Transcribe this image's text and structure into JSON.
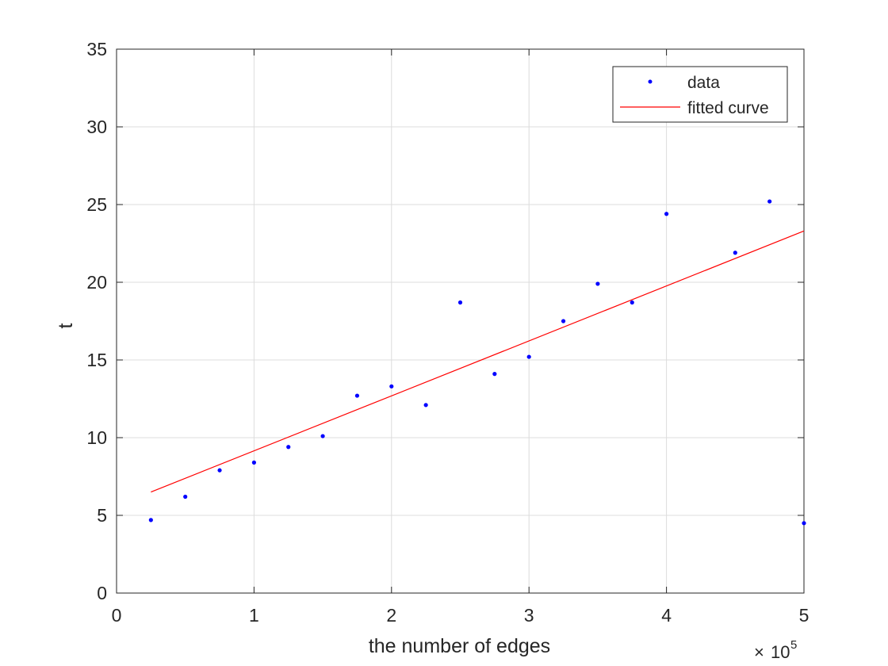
{
  "chart_data": {
    "type": "scatter",
    "title": "",
    "xlabel": "the number of edges",
    "ylabel": "t",
    "x_exponent_label": {
      "base": "10",
      "power": "5",
      "prefix": "×"
    },
    "xlim": [
      0,
      5
    ],
    "ylim": [
      0,
      35
    ],
    "x_ticks": [
      0,
      1,
      2,
      3,
      4,
      5
    ],
    "y_ticks": [
      0,
      5,
      10,
      15,
      20,
      25,
      30,
      35
    ],
    "x_tick_labels": [
      "0",
      "1",
      "2",
      "3",
      "4",
      "5"
    ],
    "y_tick_labels": [
      "0",
      "5",
      "10",
      "15",
      "20",
      "25",
      "30",
      "35"
    ],
    "grid": true,
    "legend_position": "top-right",
    "series": [
      {
        "name": "data",
        "kind": "scatter",
        "color": "#0000ff",
        "x": [
          0.25,
          0.5,
          0.75,
          1.0,
          1.25,
          1.5,
          1.75,
          2.0,
          2.25,
          2.5,
          2.75,
          3.0,
          3.25,
          3.5,
          3.75,
          4.0,
          4.5,
          4.75,
          5.0
        ],
        "y": [
          4.7,
          6.2,
          7.9,
          8.4,
          9.4,
          10.1,
          12.7,
          13.3,
          12.1,
          18.7,
          14.1,
          15.2,
          17.5,
          19.9,
          18.7,
          24.4,
          21.9,
          25.2,
          4.5
        ]
      },
      {
        "name": "fitted curve",
        "kind": "line",
        "color": "#ff0000",
        "x": [
          0.25,
          5.0
        ],
        "y": [
          6.5,
          23.3
        ]
      }
    ]
  }
}
